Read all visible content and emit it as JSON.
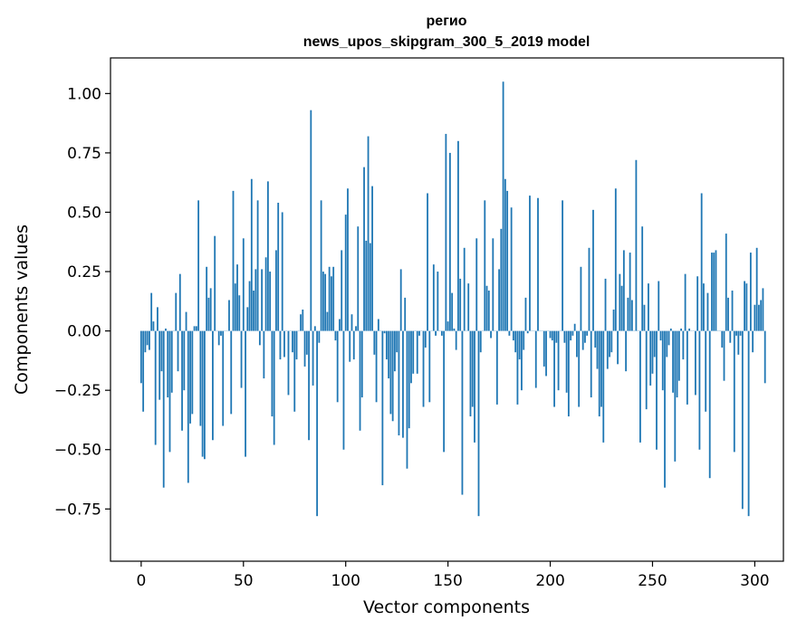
{
  "chart_data": {
    "type": "bar",
    "title_line1": "регио",
    "title_line2": "news_upos_skipgram_300_5_2019 model",
    "xlabel": "Vector components",
    "ylabel": "Components values",
    "xlim": [
      -15,
      314
    ],
    "ylim": [
      -0.97,
      1.15
    ],
    "x_ticks": [
      0,
      50,
      100,
      150,
      200,
      250,
      300
    ],
    "x_tick_labels": [
      "0",
      "50",
      "100",
      "150",
      "200",
      "250",
      "300"
    ],
    "y_ticks": [
      -0.75,
      -0.5,
      -0.25,
      0.0,
      0.25,
      0.5,
      0.75,
      1.0
    ],
    "y_tick_labels": [
      "−0.75",
      "−0.50",
      "−0.25",
      "0.00",
      "0.25",
      "0.50",
      "0.75",
      "1.00"
    ],
    "bar_color": "#1f77b4",
    "grid": false,
    "values": [
      -0.22,
      -0.34,
      -0.09,
      -0.06,
      -0.08,
      0.16,
      0.04,
      -0.48,
      0.1,
      -0.29,
      -0.17,
      -0.66,
      0.01,
      -0.28,
      -0.51,
      -0.26,
      0.0,
      0.16,
      -0.17,
      0.24,
      -0.42,
      -0.25,
      0.08,
      -0.64,
      -0.39,
      -0.35,
      0.02,
      0.02,
      0.55,
      -0.4,
      -0.53,
      -0.54,
      0.27,
      0.14,
      0.18,
      -0.46,
      0.4,
      0.0,
      -0.06,
      -0.02,
      -0.4,
      0.0,
      0.0,
      0.13,
      -0.35,
      0.59,
      0.2,
      0.28,
      0.15,
      -0.24,
      0.39,
      -0.53,
      0.1,
      0.21,
      0.64,
      0.17,
      0.26,
      0.55,
      -0.06,
      0.26,
      -0.2,
      0.31,
      0.63,
      0.25,
      -0.36,
      -0.48,
      0.34,
      0.54,
      -0.12,
      0.5,
      -0.11,
      0.0,
      -0.27,
      0.0,
      -0.09,
      -0.34,
      -0.12,
      0.0,
      0.07,
      0.09,
      -0.15,
      -0.1,
      -0.46,
      0.93,
      -0.23,
      0.02,
      -0.78,
      -0.05,
      0.55,
      0.25,
      0.24,
      0.08,
      0.27,
      0.23,
      0.27,
      -0.04,
      -0.3,
      0.05,
      0.34,
      -0.5,
      0.49,
      0.6,
      -0.13,
      0.07,
      -0.12,
      0.02,
      0.44,
      -0.42,
      -0.28,
      0.69,
      0.38,
      0.82,
      0.37,
      0.61,
      -0.1,
      -0.3,
      0.05,
      0.0,
      -0.65,
      -0.01,
      -0.12,
      -0.2,
      -0.35,
      -0.38,
      -0.17,
      -0.09,
      -0.44,
      0.26,
      -0.45,
      0.14,
      -0.58,
      -0.41,
      -0.22,
      -0.18,
      0.0,
      -0.18,
      -0.02,
      0.0,
      -0.32,
      -0.07,
      0.58,
      -0.3,
      0.0,
      0.28,
      -0.02,
      0.25,
      0.0,
      -0.02,
      -0.51,
      0.83,
      0.04,
      0.75,
      0.16,
      0.01,
      -0.08,
      0.8,
      0.22,
      -0.69,
      0.35,
      0.0,
      0.2,
      -0.36,
      -0.32,
      -0.47,
      0.39,
      -0.78,
      -0.09,
      0.0,
      0.55,
      0.19,
      0.17,
      -0.03,
      0.39,
      0.0,
      -0.31,
      0.26,
      0.43,
      1.05,
      0.64,
      0.59,
      -0.02,
      0.52,
      -0.04,
      -0.09,
      -0.31,
      -0.12,
      -0.25,
      -0.08,
      0.14,
      -0.01,
      0.57,
      0.0,
      0.0,
      -0.24,
      0.56,
      0.0,
      0.0,
      -0.15,
      -0.19,
      0.0,
      -0.03,
      -0.04,
      -0.32,
      -0.05,
      -0.25,
      0.0,
      0.55,
      -0.05,
      -0.26,
      -0.36,
      -0.04,
      -0.02,
      0.03,
      -0.11,
      -0.32,
      0.27,
      -0.08,
      -0.05,
      -0.02,
      0.35,
      -0.28,
      0.51,
      -0.07,
      -0.16,
      -0.36,
      -0.32,
      -0.47,
      0.22,
      -0.16,
      -0.11,
      -0.09,
      0.09,
      0.6,
      -0.14,
      0.24,
      0.19,
      0.34,
      -0.17,
      0.14,
      0.33,
      0.13,
      0.0,
      0.72,
      0.0,
      -0.47,
      0.44,
      0.11,
      -0.33,
      0.2,
      -0.23,
      -0.18,
      -0.11,
      -0.5,
      0.21,
      -0.04,
      -0.25,
      -0.66,
      -0.11,
      -0.06,
      0.01,
      -0.26,
      -0.55,
      -0.28,
      -0.21,
      0.01,
      -0.12,
      0.24,
      -0.31,
      0.01,
      0.0,
      0.0,
      -0.27,
      0.23,
      -0.5,
      0.58,
      0.2,
      -0.34,
      0.16,
      -0.62,
      0.33,
      0.33,
      0.34,
      0.0,
      0.0,
      -0.07,
      -0.21,
      0.41,
      0.14,
      -0.05,
      0.17,
      -0.51,
      -0.02,
      -0.1,
      -0.02,
      -0.75,
      0.21,
      0.2,
      -0.78,
      0.33,
      -0.09,
      0.11,
      0.35,
      0.11,
      0.13,
      0.18,
      -0.22
    ]
  }
}
